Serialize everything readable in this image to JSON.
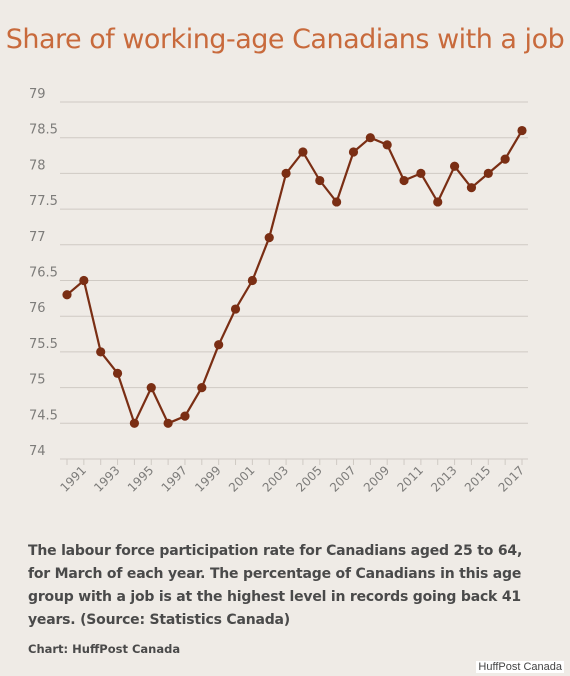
{
  "chart_data": {
    "type": "line",
    "title": "Share of working-age Canadians with a job",
    "x": [
      1990,
      1991,
      1992,
      1993,
      1994,
      1995,
      1996,
      1997,
      1998,
      1999,
      2000,
      2001,
      2002,
      2003,
      2004,
      2005,
      2006,
      2007,
      2008,
      2009,
      2010,
      2011,
      2012,
      2013,
      2014,
      2015,
      2016,
      2017
    ],
    "series": [
      {
        "values": [
          76.3,
          76.5,
          75.5,
          75.2,
          74.5,
          75.0,
          74.5,
          74.6,
          75.0,
          75.6,
          76.1,
          76.5,
          77.1,
          78.0,
          78.3,
          77.9,
          77.6,
          78.3,
          78.5,
          78.4,
          77.9,
          78.0,
          77.6,
          78.1,
          77.8,
          78.0,
          78.2,
          78.6
        ]
      }
    ],
    "x_tick_labels": [
      "1991",
      "1993",
      "1995",
      "1997",
      "1999",
      "2001",
      "2003",
      "2005",
      "2007",
      "2009",
      "2011",
      "2013",
      "2015",
      "2017"
    ],
    "y_tick_labels": [
      "74",
      "74.5",
      "75",
      "75.5",
      "76",
      "76.5",
      "77",
      "77.5",
      "78",
      "78.5",
      "79"
    ],
    "ylim": [
      74,
      79
    ],
    "xlim": [
      1990,
      2017
    ],
    "grid": "horizontal",
    "colors": {
      "line": "#7a2e14",
      "marker": "#7a2e14",
      "grid": "#cfcac4",
      "title": "#c86a3c",
      "background": "#efebe6"
    }
  },
  "caption": "The labour force participation rate for Canadians aged 25 to 64, for March of each year. The percentage of Canadians in this age group with a job is at the highest level in records going back 41 years. (Source: Statistics Canada)",
  "credit": "Chart: HuffPost Canada",
  "watermark": "HuffPost Canada"
}
